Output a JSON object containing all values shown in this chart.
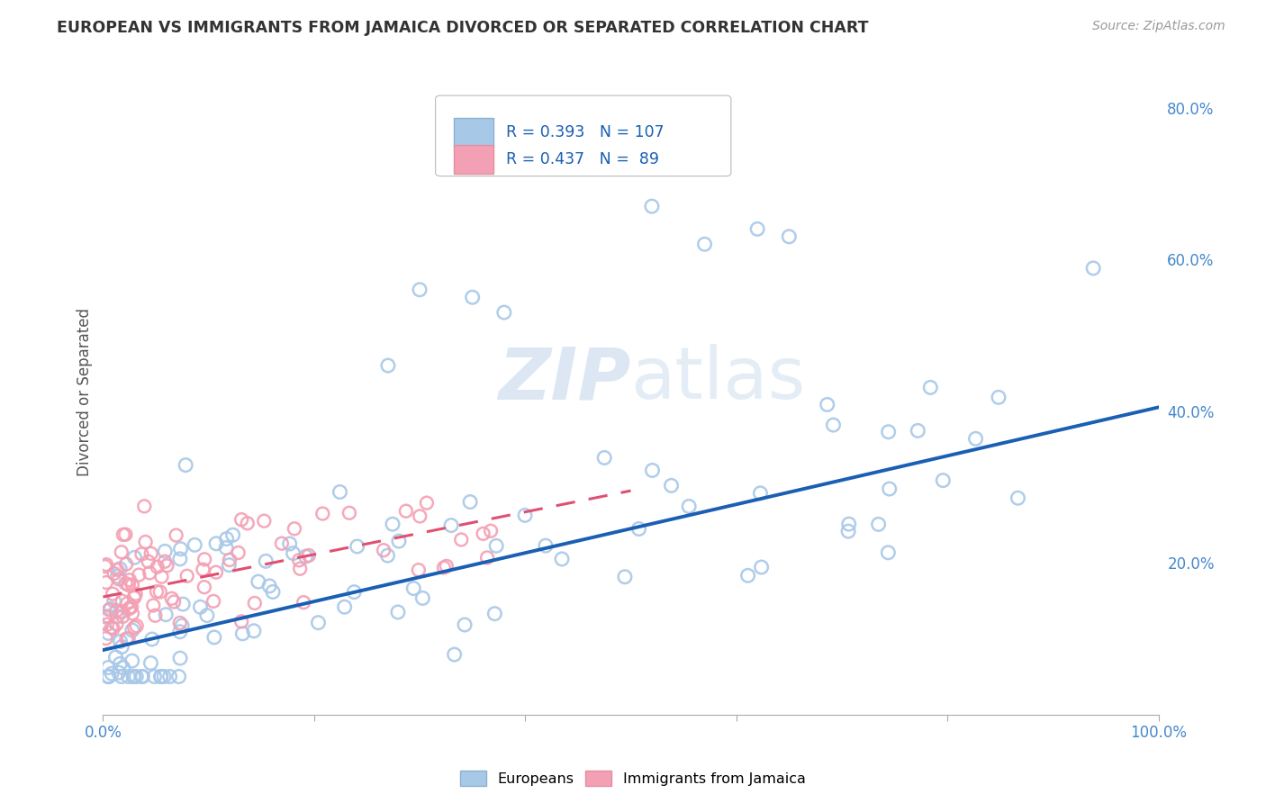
{
  "title": "EUROPEAN VS IMMIGRANTS FROM JAMAICA DIVORCED OR SEPARATED CORRELATION CHART",
  "source": "Source: ZipAtlas.com",
  "ylabel": "Divorced or Separated",
  "watermark": "ZIPatlas",
  "legend_european": "Europeans",
  "legend_jamaica": "Immigrants from Jamaica",
  "R_european": 0.393,
  "N_european": 107,
  "R_jamaica": 0.437,
  "N_jamaica": 89,
  "xlim": [
    0.0,
    1.0
  ],
  "ylim": [
    0.0,
    0.85
  ],
  "color_european": "#a8c8e8",
  "color_jamaica": "#f4a0b4",
  "color_line_european": "#1a5fb4",
  "color_line_jamaica": "#e05070",
  "color_legend_text": "#1a5fb4",
  "color_tick": "#4488cc",
  "background_color": "#ffffff",
  "grid_color": "#cccccc",
  "eu_trend_x0": 0.0,
  "eu_trend_y0": 0.085,
  "eu_trend_x1": 1.0,
  "eu_trend_y1": 0.405,
  "ja_trend_x0": 0.0,
  "ja_trend_y0": 0.155,
  "ja_trend_x1": 0.5,
  "ja_trend_y1": 0.295
}
